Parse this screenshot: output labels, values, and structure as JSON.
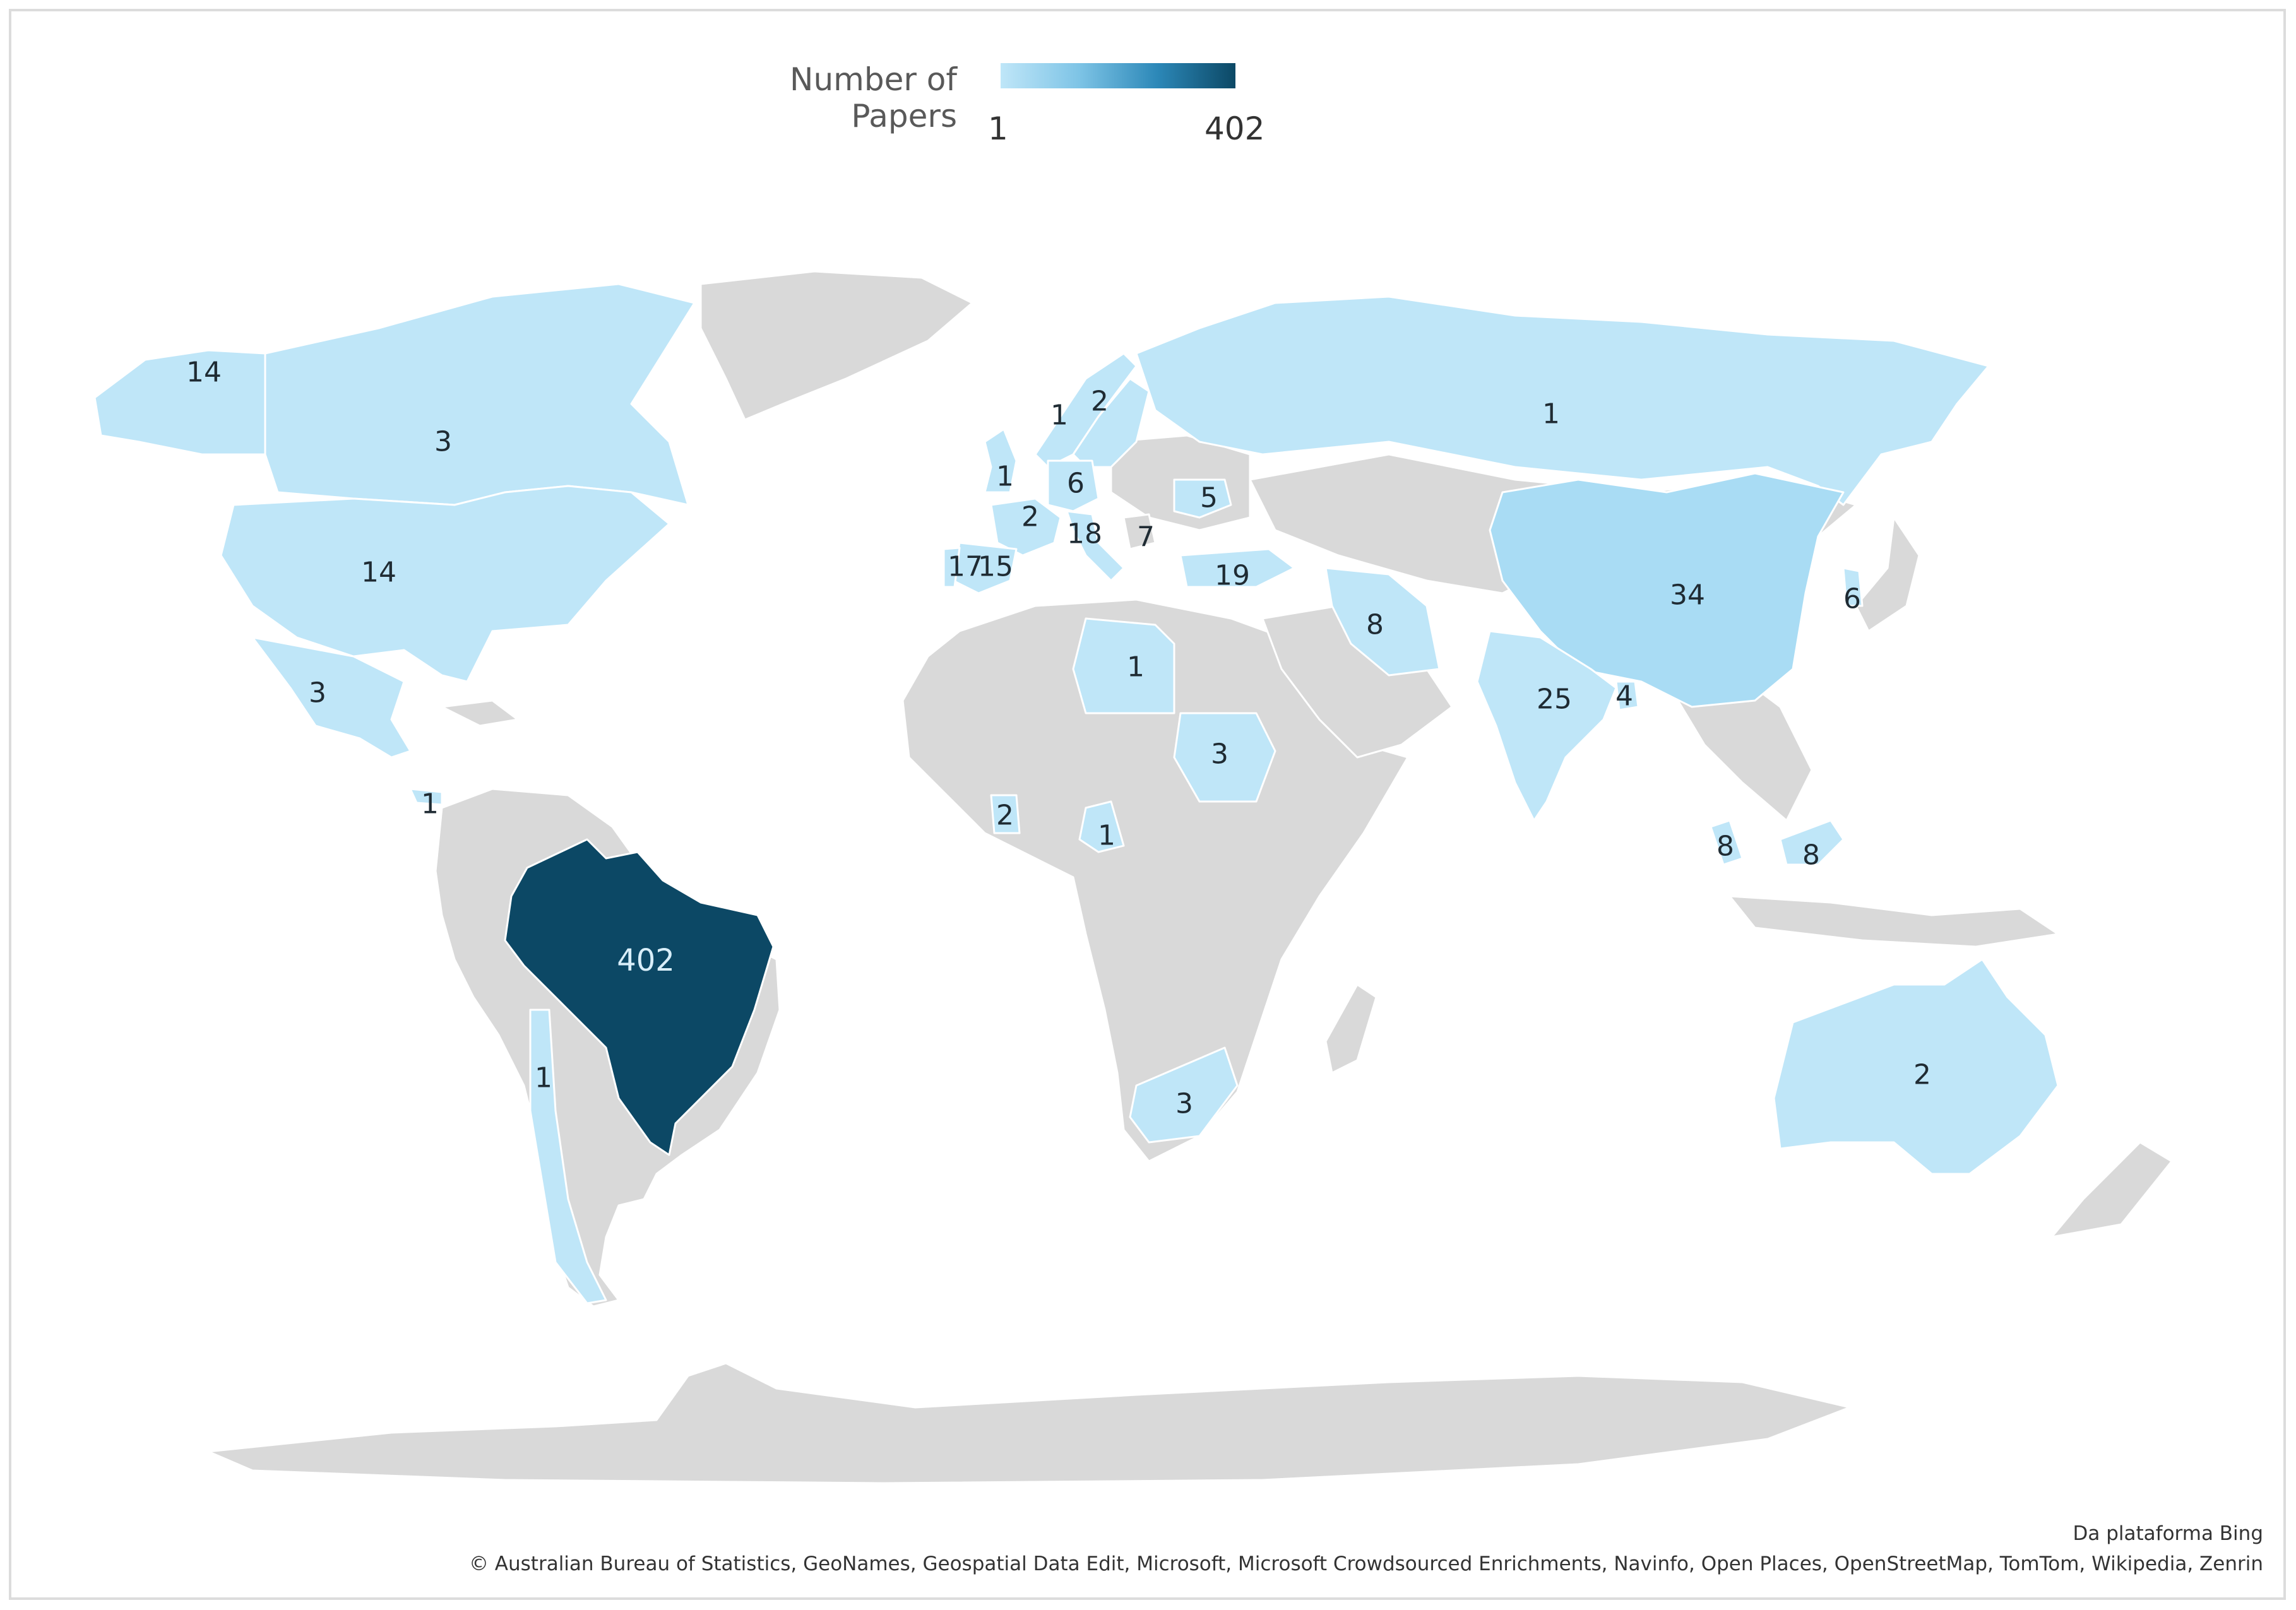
{
  "legend": {
    "title": "Number of Papers",
    "min_label": "1",
    "max_label": "402",
    "colors": {
      "low": "#bfe6f8",
      "high": "#0c4865"
    }
  },
  "colors": {
    "no_data": "#d9d9d9",
    "border": "#ffffff"
  },
  "regions": [
    {
      "name": "Alaska (USA)",
      "value": "14"
    },
    {
      "name": "Canada",
      "value": "3"
    },
    {
      "name": "United States",
      "value": "14"
    },
    {
      "name": "Mexico",
      "value": "3"
    },
    {
      "name": "Panama",
      "value": "1"
    },
    {
      "name": "Brazil",
      "value": "402"
    },
    {
      "name": "Chile",
      "value": "1"
    },
    {
      "name": "Norway",
      "value": "1"
    },
    {
      "name": "Sweden",
      "value": "2"
    },
    {
      "name": "United Kingdom",
      "value": "1"
    },
    {
      "name": "Germany",
      "value": "6"
    },
    {
      "name": "France",
      "value": "2"
    },
    {
      "name": "Italy",
      "value": "18"
    },
    {
      "name": "Spain",
      "value": "17"
    },
    {
      "name": "Portugal",
      "value": "15"
    },
    {
      "name": "Romania",
      "value": "5"
    },
    {
      "name": "Serbia",
      "value": "7"
    },
    {
      "name": "Turkey",
      "value": "19"
    },
    {
      "name": "Russia",
      "value": "1"
    },
    {
      "name": "Iran",
      "value": "8"
    },
    {
      "name": "China",
      "value": "34"
    },
    {
      "name": "South Korea",
      "value": "6"
    },
    {
      "name": "India",
      "value": "25"
    },
    {
      "name": "Bangladesh",
      "value": "4"
    },
    {
      "name": "Libya",
      "value": "1"
    },
    {
      "name": "Sudan",
      "value": "3"
    },
    {
      "name": "Ghana",
      "value": "2"
    },
    {
      "name": "Cameroon",
      "value": "1"
    },
    {
      "name": "South Africa",
      "value": "3"
    },
    {
      "name": "Malaysia",
      "value": "8"
    },
    {
      "name": "Borneo (Malaysia)",
      "value": "8"
    },
    {
      "name": "Australia",
      "value": "2"
    }
  ],
  "attribution": {
    "line1": "Da plataforma Bing",
    "line2": "© Australian Bureau of Statistics, GeoNames, Geospatial Data Edit, Microsoft, Microsoft Crowdsourced Enrichments, Navinfo, Open Places, OpenStreetMap, TomTom, Wikipedia, Zenrin"
  }
}
